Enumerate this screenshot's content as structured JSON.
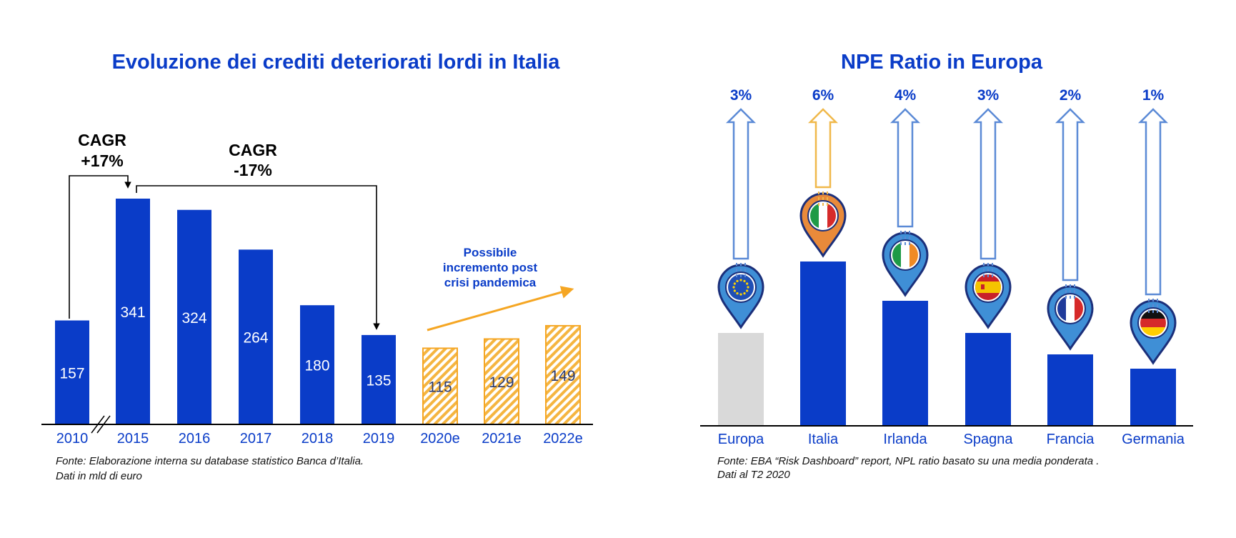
{
  "chart_data": [
    {
      "type": "bar",
      "title": "Evoluzione dei crediti deteriorati lordi in Italia",
      "categories": [
        "2010",
        "2015",
        "2016",
        "2017",
        "2018",
        "2019",
        "2020e",
        "2021e",
        "2022e"
      ],
      "values": [
        157,
        341,
        324,
        264,
        180,
        135,
        115,
        129,
        149
      ],
      "projected": [
        false,
        false,
        false,
        false,
        false,
        false,
        true,
        true,
        true
      ],
      "ylim": [
        0,
        341
      ],
      "axis_break_after": "2010",
      "annotations": {
        "cagr_up": {
          "line1": "CAGR",
          "line2": "+17%"
        },
        "cagr_down": {
          "line1": "CAGR",
          "line2": "-17%"
        },
        "projection_note": [
          "Possibile",
          "incremento post",
          "crisi pandemica"
        ]
      },
      "source": [
        "Fonte: Elaborazione interna su database statistico Banca d’Italia.",
        "Dati in mld di euro"
      ],
      "colors": {
        "actual": "#0a3cc8",
        "projected": "#f5a623"
      }
    },
    {
      "type": "bar",
      "title": "NPE Ratio in Europa",
      "categories": [
        "Europa",
        "Italia",
        "Irlanda",
        "Spagna",
        "Francia",
        "Germania"
      ],
      "values": [
        3,
        6,
        4,
        3,
        2,
        1
      ],
      "labels": [
        "3%",
        "6%",
        "4%",
        "3%",
        "2%",
        "1%"
      ],
      "bar_heights_relative": [
        2.6,
        4.6,
        3.5,
        2.6,
        2.0,
        1.6
      ],
      "highlight": "Europa",
      "flags": [
        "eu-flag-icon",
        "italy-flag-icon",
        "ireland-flag-icon",
        "spain-flag-icon",
        "france-flag-icon",
        "germany-flag-icon"
      ],
      "source": [
        "Fonte: EBA “Risk Dashboard” report, NPL ratio basato su una media ponderata .",
        "Dati al T2 2020"
      ],
      "colors": {
        "bar": "#0a3cc8",
        "europa_bar": "#d9d9d9",
        "arrow": "#5b8ad6",
        "italia_arrow": "#f0b84a"
      }
    }
  ]
}
